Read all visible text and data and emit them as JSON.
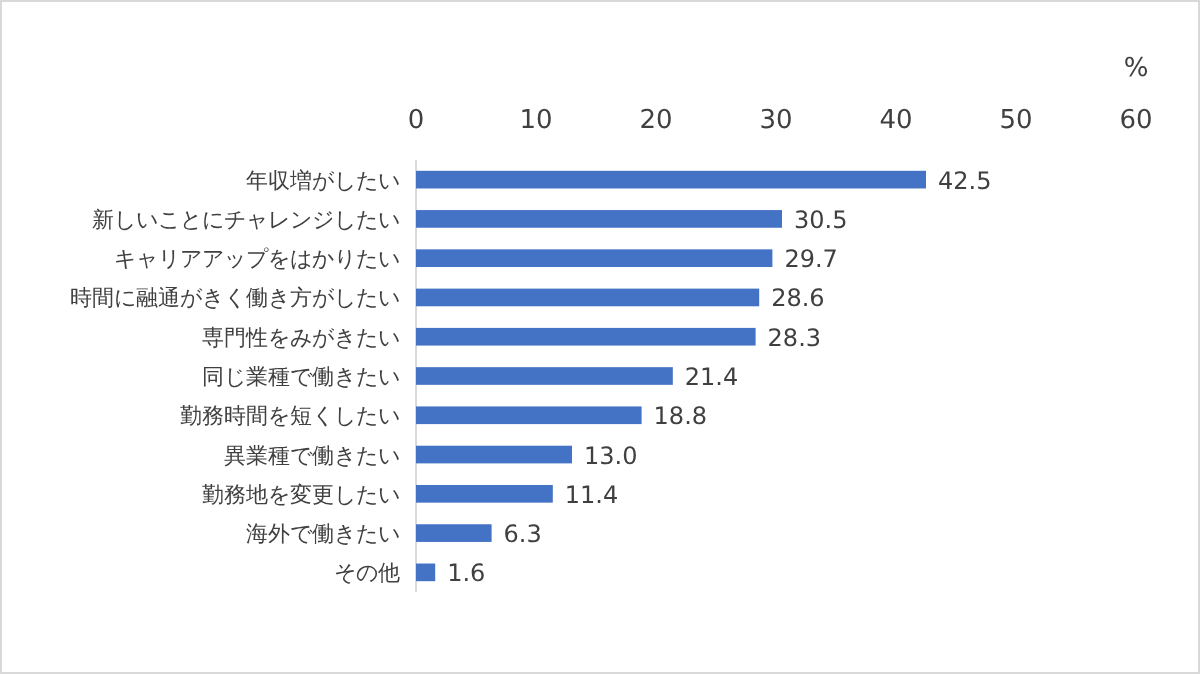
{
  "chart_data": {
    "type": "bar",
    "orientation": "horizontal",
    "xlabel": "%",
    "categories": [
      "年収増がしたい",
      "新しいことにチャレンジしたい",
      "キャリアアップをはかりたい",
      "時間に融通がきく働き方がしたい",
      "専門性をみがきたい",
      "同じ業種で働きたい",
      "勤務時間を短くしたい",
      "異業種で働きたい",
      "勤務地を変更したい",
      "海外で働きたい",
      "その他"
    ],
    "values": [
      42.5,
      30.5,
      29.7,
      28.6,
      28.3,
      21.4,
      18.8,
      13.0,
      11.4,
      6.3,
      1.6
    ],
    "value_labels": [
      "42.5",
      "30.5",
      "29.7",
      "28.6",
      "28.3",
      "21.4",
      "18.8",
      "13.0",
      "11.4",
      "6.3",
      "1.6"
    ],
    "color": "#4472c4",
    "xlim": [
      0,
      60
    ],
    "xticks": [
      0,
      10,
      20,
      30,
      40,
      50,
      60
    ],
    "grid": false
  }
}
